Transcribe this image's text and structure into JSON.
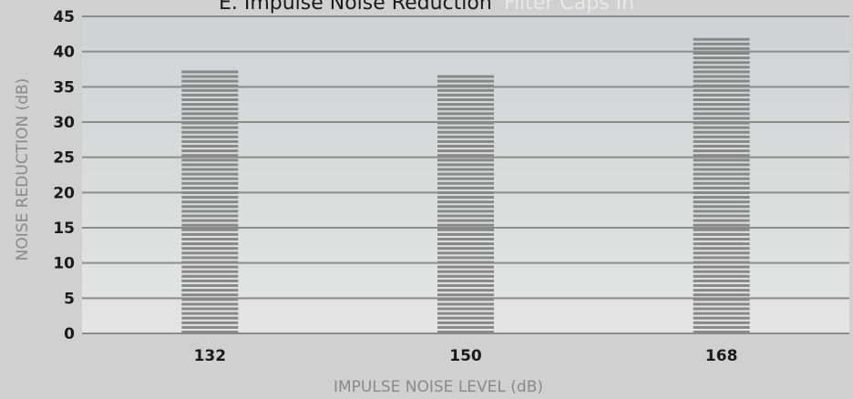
{
  "chart_data": {
    "type": "bar",
    "title": "E. Impulse Noise Reduction",
    "subtitle": "Filter Caps In",
    "xlabel": "IMPULSE NOISE LEVEL (dB)",
    "ylabel": "NOISE REDUCTION (dB)",
    "categories": [
      "132",
      "150",
      "168"
    ],
    "values": [
      37.5,
      37.0,
      42.3
    ],
    "ylim": [
      0,
      45
    ],
    "yticks": [
      0,
      5,
      10,
      15,
      20,
      25,
      30,
      35,
      40,
      45
    ],
    "grid": true,
    "legend": "none",
    "colors": {
      "plot_background": "#e4e4e4",
      "plot_background_top": "#cfd3d3",
      "gridline": "#8c8c8c",
      "bar_stripe": "#888888",
      "page_background": "#d0d0d0"
    }
  }
}
